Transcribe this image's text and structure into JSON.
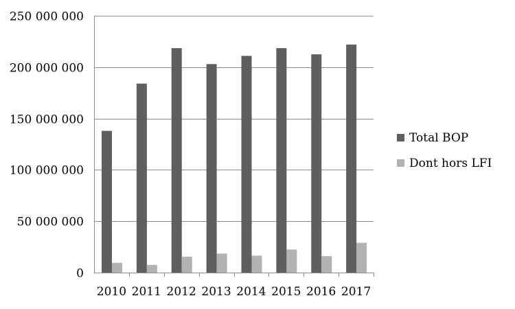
{
  "chart_data": {
    "type": "bar",
    "categories": [
      "2010",
      "2011",
      "2012",
      "2013",
      "2014",
      "2015",
      "2016",
      "2017"
    ],
    "series": [
      {
        "name": "Total BOP",
        "color": "#5f5f5f",
        "values": [
          138000000,
          184000000,
          218500000,
          203000000,
          211000000,
          218500000,
          212500000,
          222000000
        ]
      },
      {
        "name": "Dont hors LFI",
        "color": "#b2b2b2",
        "values": [
          9500000,
          7500000,
          15500000,
          18500000,
          16500000,
          22500000,
          16000000,
          29000000
        ]
      }
    ],
    "ylim": [
      0,
      250000000
    ],
    "yticks": [
      0,
      50000000,
      100000000,
      150000000,
      200000000,
      250000000
    ],
    "ytick_labels": [
      "0",
      "50 000 000",
      "100 000 000",
      "150 000 000",
      "200 000 000",
      "250 000 000"
    ],
    "grid": true,
    "legend_position": "right",
    "title": "",
    "xlabel": "",
    "ylabel": ""
  }
}
